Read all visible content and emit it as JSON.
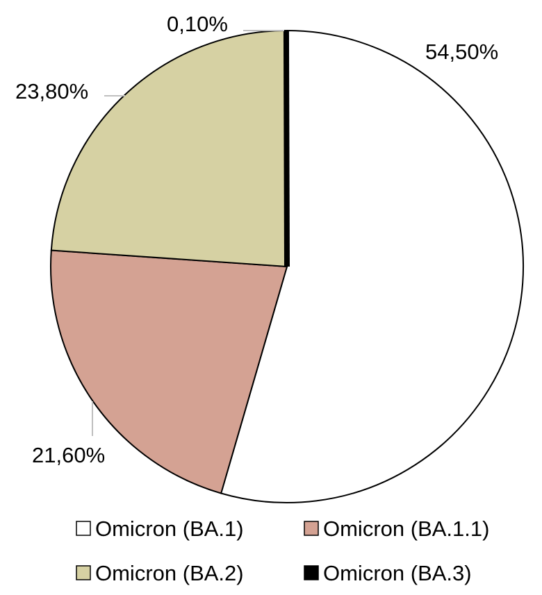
{
  "chart_data": {
    "type": "pie",
    "start": "top",
    "direction": "clockwise",
    "legend_position": "bottom",
    "slices": [
      {
        "name": "Omicron (BA.1)",
        "value": 54.5,
        "label": "54,50%",
        "color": "#FFFFFF"
      },
      {
        "name": "Omicron (BA.1.1)",
        "value": 21.6,
        "label": "21,60%",
        "color": "#D4A293"
      },
      {
        "name": "Omicron (BA.2)",
        "value": 23.8,
        "label": "23,80%",
        "color": "#D6D1A3"
      },
      {
        "name": "Omicron (BA.3)",
        "value": 0.1,
        "label": "0,10%",
        "color": "#000000"
      }
    ]
  }
}
